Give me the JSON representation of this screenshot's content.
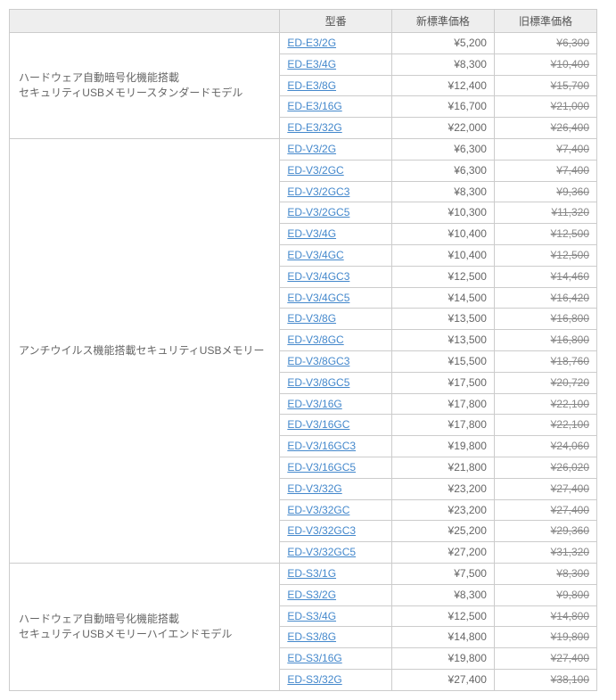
{
  "columns": {
    "model": "型番",
    "new_price": "新標準価格",
    "old_price": "旧標準価格"
  },
  "groups": [
    {
      "category": "ハードウェア自動暗号化機能搭載\nセキュリティUSBメモリースタンダードモデル",
      "rows": [
        {
          "model": "ED-E3/2G",
          "new": "¥5,200",
          "old": "¥6,300"
        },
        {
          "model": "ED-E3/4G",
          "new": "¥8,300",
          "old": "¥10,400"
        },
        {
          "model": "ED-E3/8G",
          "new": "¥12,400",
          "old": "¥15,700"
        },
        {
          "model": "ED-E3/16G",
          "new": "¥16,700",
          "old": "¥21,000"
        },
        {
          "model": "ED-E3/32G",
          "new": "¥22,000",
          "old": "¥26,400"
        }
      ]
    },
    {
      "category": "アンチウイルス機能搭載セキュリティUSBメモリー",
      "rows": [
        {
          "model": "ED-V3/2G",
          "new": "¥6,300",
          "old": "¥7,400"
        },
        {
          "model": "ED-V3/2GC",
          "new": "¥6,300",
          "old": "¥7,400"
        },
        {
          "model": "ED-V3/2GC3",
          "new": "¥8,300",
          "old": "¥9,360"
        },
        {
          "model": "ED-V3/2GC5",
          "new": "¥10,300",
          "old": "¥11,320"
        },
        {
          "model": "ED-V3/4G",
          "new": "¥10,400",
          "old": "¥12,500"
        },
        {
          "model": "ED-V3/4GC",
          "new": "¥10,400",
          "old": "¥12,500"
        },
        {
          "model": "ED-V3/4GC3",
          "new": "¥12,500",
          "old": "¥14,460"
        },
        {
          "model": "ED-V3/4GC5",
          "new": "¥14,500",
          "old": "¥16,420"
        },
        {
          "model": "ED-V3/8G",
          "new": "¥13,500",
          "old": "¥16,800"
        },
        {
          "model": "ED-V3/8GC",
          "new": "¥13,500",
          "old": "¥16,800"
        },
        {
          "model": "ED-V3/8GC3",
          "new": "¥15,500",
          "old": "¥18,760"
        },
        {
          "model": "ED-V3/8GC5",
          "new": "¥17,500",
          "old": "¥20,720"
        },
        {
          "model": "ED-V3/16G",
          "new": "¥17,800",
          "old": "¥22,100"
        },
        {
          "model": "ED-V3/16GC",
          "new": "¥17,800",
          "old": "¥22,100"
        },
        {
          "model": "ED-V3/16GC3",
          "new": "¥19,800",
          "old": "¥24,060"
        },
        {
          "model": "ED-V3/16GC5",
          "new": "¥21,800",
          "old": "¥26,020"
        },
        {
          "model": "ED-V3/32G",
          "new": "¥23,200",
          "old": "¥27,400"
        },
        {
          "model": "ED-V3/32GC",
          "new": "¥23,200",
          "old": "¥27,400"
        },
        {
          "model": "ED-V3/32GC3",
          "new": "¥25,200",
          "old": "¥29,360"
        },
        {
          "model": "ED-V3/32GC5",
          "new": "¥27,200",
          "old": "¥31,320"
        }
      ]
    },
    {
      "category": "ハードウェア自動暗号化機能搭載\nセキュリティUSBメモリーハイエンドモデル",
      "rows": [
        {
          "model": "ED-S3/1G",
          "new": "¥7,500",
          "old": "¥8,300"
        },
        {
          "model": "ED-S3/2G",
          "new": "¥8,300",
          "old": "¥9,800"
        },
        {
          "model": "ED-S3/4G",
          "new": "¥12,500",
          "old": "¥14,800"
        },
        {
          "model": "ED-S3/8G",
          "new": "¥14,800",
          "old": "¥19,800"
        },
        {
          "model": "ED-S3/16G",
          "new": "¥19,800",
          "old": "¥27,400"
        },
        {
          "model": "ED-S3/32G",
          "new": "¥27,400",
          "old": "¥38,100"
        }
      ]
    }
  ],
  "style": {
    "link_color": "#4488cc",
    "border_color": "#cccccc",
    "header_bg": "#eeeeee",
    "text_color": "#666666",
    "old_price_color": "#888888",
    "font_size": 12
  }
}
